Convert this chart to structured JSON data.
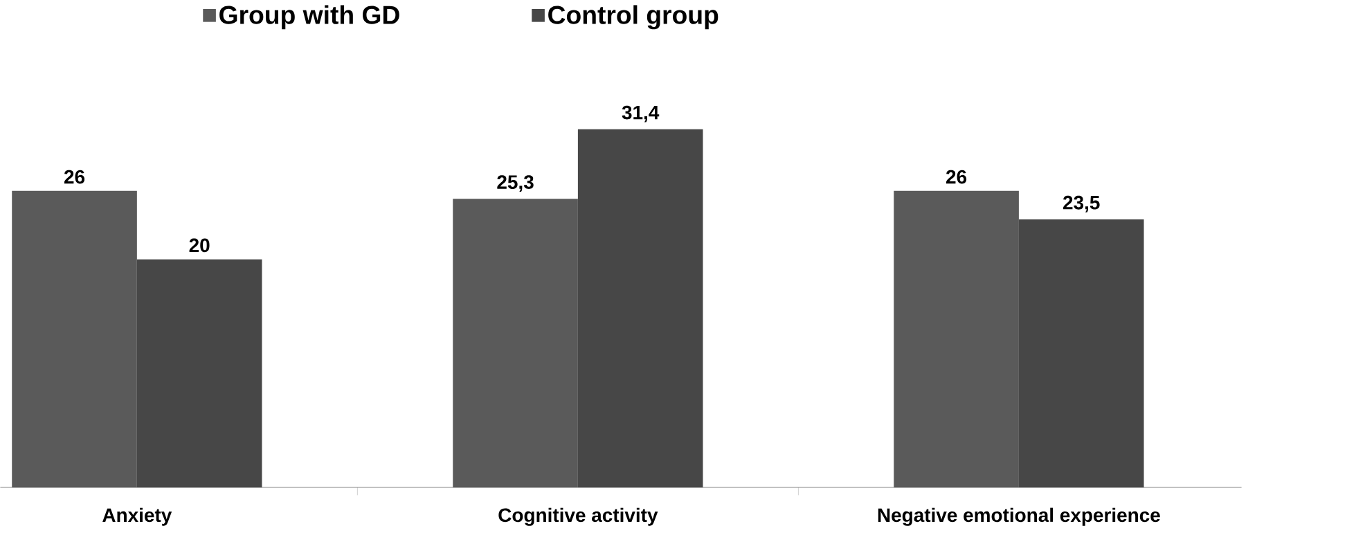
{
  "chart_data": {
    "type": "bar",
    "categories": [
      "Anxiety",
      "Cognitive activity",
      "Negative emotional experience"
    ],
    "series": [
      {
        "name": "Group with GD",
        "color": "#5a5a5a",
        "values": [
          26,
          25.3,
          26
        ],
        "value_labels": [
          "26",
          "25,3",
          "26"
        ]
      },
      {
        "name": "Control group",
        "color": "#474747",
        "values": [
          20,
          31.4,
          23.5
        ],
        "value_labels": [
          "20",
          "31,4",
          "23,5"
        ]
      }
    ],
    "legend": "top",
    "grid": false
  }
}
